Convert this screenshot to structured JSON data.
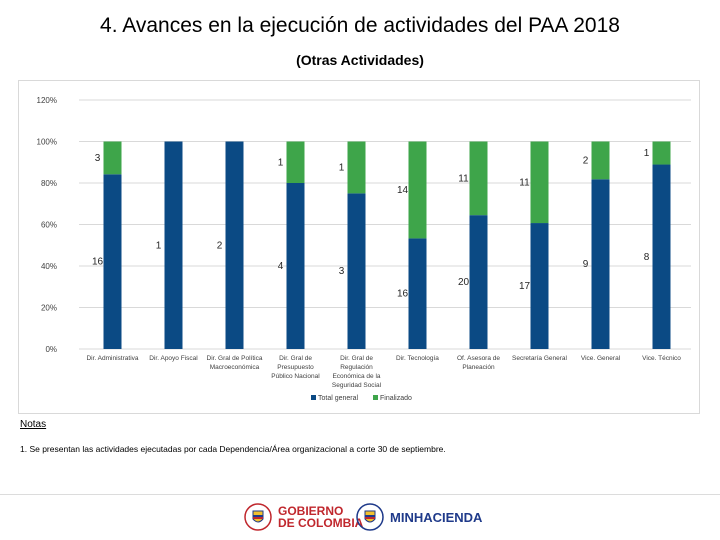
{
  "header": {
    "title": "4. Avances en la ejecución de actividades del PAA 2018",
    "subtitle": "(Otras Actividades)"
  },
  "chart_data": {
    "type": "bar",
    "stacked": true,
    "ylim": [
      0,
      120
    ],
    "yticks": [
      "0%",
      "20%",
      "40%",
      "60%",
      "80%",
      "100%",
      "120%"
    ],
    "ytick_values": [
      0,
      20,
      40,
      60,
      80,
      100,
      120
    ],
    "categories": [
      [
        "Dir. Administrativa"
      ],
      [
        "Dir. Apoyo Fiscal"
      ],
      [
        "Dir. Gral de Política",
        "Macroeconómica"
      ],
      [
        "Dir. Gral de",
        "Presupuesto",
        "Público Nacional"
      ],
      [
        "Dir. Gral de",
        "Regulación",
        "Económica de la",
        "Seguridad Social"
      ],
      [
        "Dir. Tecnología"
      ],
      [
        "Of. Asesora de",
        "Planeación"
      ],
      [
        "Secretaría General"
      ],
      [
        "Vice. General"
      ],
      [
        "Vice. Técnico"
      ]
    ],
    "series": [
      {
        "name": "Total general",
        "color": "#0b4a84",
        "values": [
          84.2,
          100,
          100,
          80,
          75,
          53.3,
          64.5,
          60.7,
          81.8,
          88.9
        ],
        "labels": [
          "16",
          "1",
          "2",
          "4",
          "3",
          "16",
          "20",
          "17",
          "9",
          "8"
        ]
      },
      {
        "name": "Finalizado",
        "color": "#3ea54a",
        "values": [
          15.8,
          0,
          0,
          20,
          25,
          46.7,
          35.5,
          39.3,
          18.2,
          11.1
        ],
        "labels": [
          "3",
          "",
          "",
          "1",
          "1",
          "14",
          "11",
          "11",
          "2",
          "1"
        ]
      }
    ],
    "legend": [
      "Total general",
      "Finalizado"
    ],
    "legend_position": "bottom"
  },
  "notes": {
    "title": "Notas",
    "text": "1. Se presentan las actividades ejecutadas por cada Dependencia/Área organizacional a corte 30 de septiembre."
  },
  "footer": {
    "logo1_line1": "GOBIERNO",
    "logo1_line2": "DE COLOMBIA",
    "logo2": "MINHACIENDA"
  }
}
